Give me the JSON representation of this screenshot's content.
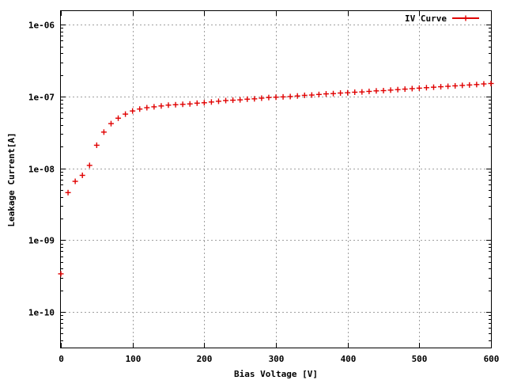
{
  "chart_data": {
    "type": "scatter",
    "xlabel": "Bias Voltage [V]",
    "ylabel": "Leakage Current[A]",
    "xlim": [
      0,
      600
    ],
    "ylim": [
      3.2e-11,
      1.55e-06
    ],
    "yscale": "log",
    "grid": true,
    "legend_position": "top-right",
    "x_ticks": [
      0,
      100,
      200,
      300,
      400,
      500,
      600
    ],
    "x_tick_labels": [
      "0",
      "100",
      "200",
      "300",
      "400",
      "500",
      "600"
    ],
    "y_ticks": [
      1e-10,
      1e-09,
      1e-08,
      1e-07,
      1e-06
    ],
    "y_tick_labels": [
      "1e-10",
      "1e-09",
      "1e-08",
      "1e-07",
      "1e-06"
    ],
    "series": [
      {
        "name": "IV Curve",
        "color": "#e00000",
        "marker": "plus",
        "x": [
          0,
          10,
          20,
          30,
          40,
          50,
          60,
          70,
          80,
          90,
          100,
          110,
          120,
          130,
          140,
          150,
          160,
          170,
          180,
          190,
          200,
          210,
          220,
          230,
          240,
          250,
          260,
          270,
          280,
          290,
          300,
          310,
          320,
          330,
          340,
          350,
          360,
          370,
          380,
          390,
          400,
          410,
          420,
          430,
          440,
          450,
          460,
          470,
          480,
          490,
          500,
          510,
          520,
          530,
          540,
          550,
          560,
          570,
          580,
          590,
          600
        ],
        "y": [
          3.4e-10,
          4.6e-09,
          6.6e-09,
          8e-09,
          1.1e-08,
          2.1e-08,
          3.2e-08,
          4.2e-08,
          5e-08,
          5.7e-08,
          6.3e-08,
          6.7e-08,
          7e-08,
          7.2e-08,
          7.4e-08,
          7.6e-08,
          7.7e-08,
          7.8e-08,
          7.9e-08,
          8.1e-08,
          8.2e-08,
          8.4e-08,
          8.6e-08,
          8.8e-08,
          8.9e-08,
          9e-08,
          9.2e-08,
          9.3e-08,
          9.5e-08,
          9.7e-08,
          9.8e-08,
          9.9e-08,
          1e-07,
          1.02e-07,
          1.04e-07,
          1.05e-07,
          1.07e-07,
          1.09e-07,
          1.1e-07,
          1.12e-07,
          1.13e-07,
          1.15e-07,
          1.16e-07,
          1.18e-07,
          1.2e-07,
          1.21e-07,
          1.23e-07,
          1.25e-07,
          1.27e-07,
          1.29e-07,
          1.31e-07,
          1.33e-07,
          1.35e-07,
          1.37e-07,
          1.39e-07,
          1.41e-07,
          1.43e-07,
          1.45e-07,
          1.47e-07,
          1.5e-07,
          1.52e-07
        ]
      }
    ]
  }
}
